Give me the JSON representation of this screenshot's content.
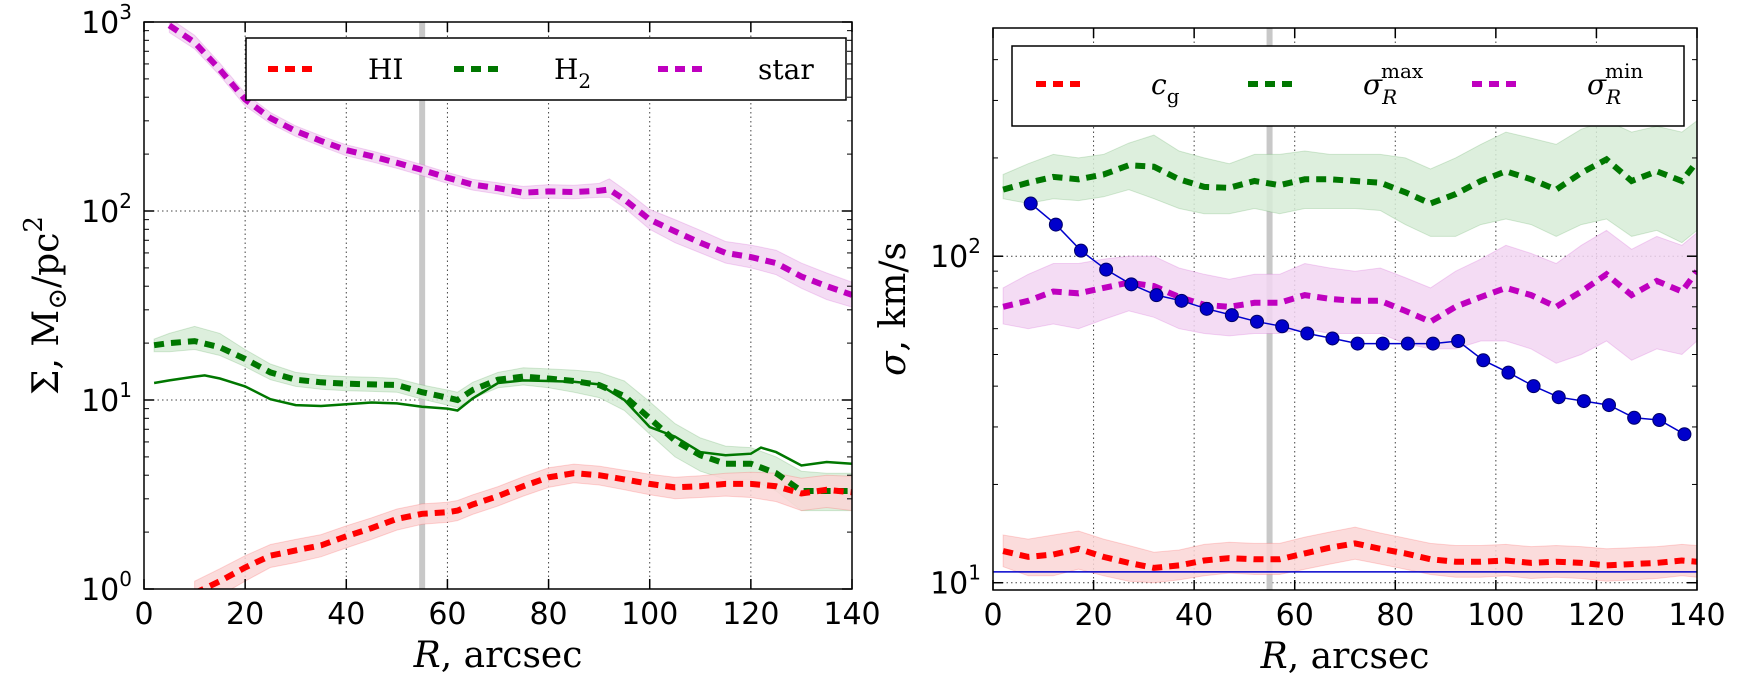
{
  "chart_data": [
    {
      "type": "line",
      "id": "left",
      "yscale": "log",
      "xlim": [
        0,
        140
      ],
      "ylim": [
        1,
        1000
      ],
      "xticks": [
        "0",
        "20",
        "40",
        "60",
        "80",
        "100",
        "120",
        "140"
      ],
      "xtick_values": [
        0,
        20,
        40,
        60,
        80,
        100,
        120,
        140
      ],
      "yticks": [
        {
          "value": 1,
          "base": "10",
          "exp": "0"
        },
        {
          "value": 10,
          "base": "10",
          "exp": "1"
        },
        {
          "value": 100,
          "base": "10",
          "exp": "2"
        },
        {
          "value": 1000,
          "base": "10",
          "exp": "3"
        }
      ],
      "xlabel": {
        "var": "R",
        "rest": ", arcsec"
      },
      "ylabel": {
        "sym": "Σ, M",
        "sub": "⊙",
        "mid": "/pc",
        "sup": "2"
      },
      "vline": 55,
      "grid": true,
      "legend": {
        "placement": "top",
        "entries": [
          {
            "label": "HI",
            "color": "#ff0000"
          },
          {
            "label": "H",
            "sub": "2",
            "color": "#007700"
          },
          {
            "label": "star",
            "color": "#bf00bf"
          }
        ]
      },
      "series": [
        {
          "name": "star",
          "color": "#bf00bf",
          "fill": "#f2d6f2",
          "style": "dashed",
          "x": [
            5,
            10,
            15,
            20,
            25,
            30,
            35,
            40,
            45,
            50,
            55,
            60,
            65,
            70,
            75,
            80,
            85,
            90,
            92,
            95,
            100,
            105,
            110,
            115,
            120,
            125,
            130,
            135,
            140
          ],
          "y": [
            960,
            780,
            560,
            390,
            310,
            265,
            235,
            210,
            195,
            180,
            165,
            150,
            138,
            132,
            125,
            127,
            126,
            128,
            130,
            115,
            90,
            78,
            68,
            60,
            57,
            53,
            45,
            40,
            36
          ],
          "lo": [
            880,
            720,
            520,
            360,
            290,
            248,
            220,
            196,
            182,
            168,
            154,
            140,
            129,
            123,
            116,
            117,
            116,
            118,
            118,
            104,
            80,
            68,
            60,
            53,
            50,
            46,
            39,
            34,
            31
          ],
          "hi": [
            1050,
            850,
            605,
            420,
            332,
            282,
            250,
            224,
            208,
            192,
            176,
            160,
            147,
            141,
            135,
            138,
            137,
            140,
            148,
            130,
            102,
            90,
            79,
            69,
            66,
            62,
            53,
            47,
            42
          ]
        },
        {
          "name": "H2",
          "color": "#007700",
          "fill": "#d7ecd7",
          "style": "dashed",
          "x": [
            2,
            5,
            10,
            15,
            20,
            25,
            30,
            35,
            40,
            45,
            50,
            55,
            60,
            62,
            65,
            70,
            75,
            80,
            85,
            90,
            95,
            100,
            105,
            110,
            115,
            120,
            125,
            130,
            135,
            140
          ],
          "y": [
            19.5,
            20,
            20.5,
            19,
            16.5,
            14,
            12.8,
            12.4,
            12.2,
            12.1,
            12,
            11,
            10.3,
            10,
            11.3,
            12.8,
            13.3,
            13,
            12.6,
            12,
            10.5,
            8,
            6.1,
            5.1,
            4.6,
            4.6,
            4.1,
            3.3,
            3.3,
            3.3
          ],
          "lo": [
            18,
            18,
            18.5,
            17.2,
            15,
            12.8,
            11.8,
            11.4,
            11.2,
            11.1,
            11,
            10.1,
            9.4,
            9.1,
            10.2,
            11.6,
            12,
            11.6,
            11,
            10.3,
            8.8,
            6.6,
            5,
            4.2,
            3.8,
            3.8,
            3.3,
            2.6,
            2.6,
            2.6
          ],
          "hi": [
            21,
            22.5,
            24.5,
            22.5,
            18.5,
            15.5,
            14,
            13.5,
            13.3,
            13.2,
            13,
            12,
            11.3,
            11,
            12.4,
            14,
            14.8,
            14.6,
            14.4,
            14,
            12.6,
            9.8,
            7.5,
            6.3,
            5.7,
            5.6,
            5,
            4.2,
            4.1,
            4.1
          ]
        },
        {
          "name": "HI",
          "color": "#ff0000",
          "fill": "#fad6d6",
          "style": "dashed",
          "x": [
            10,
            15,
            20,
            25,
            30,
            35,
            40,
            45,
            50,
            55,
            60,
            62,
            65,
            70,
            75,
            80,
            85,
            90,
            95,
            100,
            105,
            110,
            115,
            120,
            125,
            130,
            135,
            140
          ],
          "y": [
            0.95,
            1.1,
            1.3,
            1.5,
            1.6,
            1.7,
            1.9,
            2.1,
            2.35,
            2.5,
            2.55,
            2.6,
            2.8,
            3.1,
            3.5,
            3.9,
            4.1,
            4,
            3.8,
            3.6,
            3.45,
            3.5,
            3.6,
            3.6,
            3.5,
            3.2,
            3.35,
            3.25
          ],
          "lo": [
            0.8,
            0.92,
            1.1,
            1.3,
            1.38,
            1.48,
            1.65,
            1.83,
            2.05,
            2.2,
            2.25,
            2.3,
            2.48,
            2.75,
            3.1,
            3.45,
            3.65,
            3.55,
            3.35,
            3.15,
            3,
            3.05,
            3.1,
            3.05,
            2.9,
            2.6,
            2.7,
            2.6
          ],
          "hi": [
            1.1,
            1.28,
            1.5,
            1.72,
            1.83,
            1.94,
            2.16,
            2.38,
            2.65,
            2.82,
            2.88,
            2.94,
            3.15,
            3.48,
            3.93,
            4.38,
            4.58,
            4.47,
            4.25,
            4.05,
            3.9,
            3.97,
            4.1,
            4.15,
            4.1,
            3.85,
            4,
            3.95
          ]
        },
        {
          "name": "H2 (solid)",
          "color": "#007700",
          "style": "solid",
          "x": [
            2,
            5,
            10,
            12,
            15,
            20,
            25,
            30,
            35,
            40,
            45,
            50,
            55,
            60,
            62,
            65,
            70,
            75,
            80,
            85,
            90,
            95,
            100,
            105,
            110,
            115,
            120,
            122,
            125,
            130,
            135,
            140
          ],
          "y": [
            12.3,
            12.7,
            13.3,
            13.5,
            13,
            11.8,
            10.1,
            9.4,
            9.3,
            9.5,
            9.7,
            9.6,
            9.2,
            9,
            8.8,
            10.2,
            12.3,
            12.7,
            12.6,
            12.5,
            12.1,
            10,
            7.2,
            6.4,
            5.3,
            5.1,
            5.2,
            5.6,
            5.3,
            4.5,
            4.7,
            4.6
          ]
        }
      ]
    },
    {
      "type": "line",
      "id": "right",
      "yscale": "log",
      "xlim": [
        0,
        140
      ],
      "ylim": [
        9.5,
        500
      ],
      "xticks": [
        "0",
        "20",
        "40",
        "60",
        "80",
        "100",
        "120",
        "140"
      ],
      "xtick_values": [
        0,
        20,
        40,
        60,
        80,
        100,
        120,
        140
      ],
      "yticks": [
        {
          "value": 10,
          "base": "10",
          "exp": "1"
        },
        {
          "value": 100,
          "base": "10",
          "exp": "2"
        }
      ],
      "xlabel": {
        "var": "R",
        "rest": ", arcsec"
      },
      "ylabel": {
        "var": "σ",
        "rest": ", km/s"
      },
      "vline": 55,
      "grid": true,
      "legend": {
        "placement": "top",
        "entries": [
          {
            "label": "c",
            "sub": "g",
            "color": "#ff0000"
          },
          {
            "label": "σ",
            "sub": "R",
            "sup": "max",
            "color": "#007700"
          },
          {
            "label": "σ",
            "sub": "R",
            "sup": "min",
            "color": "#bf00bf"
          }
        ]
      },
      "series": [
        {
          "name": "sigma_R_max",
          "color": "#007700",
          "fill": "#d7ecd7",
          "style": "dashed",
          "x": [
            2,
            7,
            12,
            17,
            22,
            27,
            32,
            37,
            42,
            47,
            52,
            57,
            62,
            67,
            72,
            77,
            82,
            87,
            92,
            97,
            102,
            107,
            112,
            117,
            122,
            127,
            132,
            137,
            140
          ],
          "y": [
            160,
            168,
            175,
            172,
            178,
            190,
            188,
            172,
            163,
            162,
            170,
            165,
            172,
            172,
            170,
            168,
            157,
            145,
            155,
            170,
            182,
            172,
            160,
            180,
            198,
            170,
            182,
            170,
            195
          ],
          "lo": [
            150,
            145,
            150,
            148,
            152,
            160,
            150,
            140,
            135,
            135,
            140,
            135,
            140,
            140,
            140,
            138,
            125,
            115,
            115,
            125,
            130,
            125,
            115,
            125,
            130,
            115,
            120,
            110,
            120
          ],
          "hi": [
            178,
            192,
            205,
            200,
            205,
            222,
            235,
            210,
            200,
            192,
            205,
            205,
            210,
            205,
            205,
            205,
            200,
            185,
            200,
            220,
            240,
            230,
            220,
            245,
            260,
            240,
            250,
            240,
            260
          ]
        },
        {
          "name": "sigma_R_min",
          "color": "#bf00bf",
          "fill": "#f2d6f2",
          "style": "dashed",
          "x": [
            2,
            7,
            12,
            17,
            22,
            27,
            32,
            37,
            42,
            47,
            52,
            57,
            62,
            67,
            72,
            77,
            82,
            87,
            92,
            97,
            102,
            107,
            112,
            117,
            122,
            127,
            132,
            137,
            140
          ],
          "y": [
            70,
            73,
            78,
            77,
            80,
            83,
            81,
            75,
            71,
            70,
            72,
            72,
            76,
            74,
            73,
            73,
            68,
            63,
            70,
            75,
            80,
            76,
            70,
            78,
            88,
            76,
            84,
            78,
            90
          ],
          "lo": [
            62,
            60,
            62,
            60,
            64,
            68,
            65,
            60,
            58,
            57,
            58,
            58,
            60,
            58,
            58,
            58,
            54,
            52,
            52,
            55,
            55,
            52,
            47,
            50,
            55,
            48,
            52,
            50,
            55
          ],
          "hi": [
            80,
            88,
            95,
            95,
            98,
            100,
            100,
            92,
            88,
            85,
            88,
            88,
            95,
            92,
            90,
            92,
            86,
            80,
            90,
            98,
            108,
            102,
            95,
            108,
            120,
            105,
            115,
            108,
            118
          ]
        },
        {
          "name": "c_g",
          "color": "#ff0000",
          "fill": "#fad6d6",
          "style": "dashed",
          "x": [
            2,
            7,
            12,
            17,
            22,
            27,
            32,
            37,
            42,
            47,
            52,
            57,
            62,
            67,
            72,
            77,
            82,
            87,
            92,
            97,
            102,
            107,
            112,
            117,
            122,
            127,
            132,
            137,
            140
          ],
          "y": [
            12.5,
            12,
            12.2,
            12.7,
            12,
            11.5,
            11.1,
            11.3,
            11.7,
            11.9,
            11.8,
            11.8,
            12.3,
            12.8,
            13.2,
            12.7,
            12.3,
            11.8,
            11.6,
            11.6,
            11.7,
            11.5,
            11.6,
            11.5,
            11.3,
            11.4,
            11.5,
            11.7,
            11.6
          ],
          "lo": [
            11.2,
            10.5,
            10.5,
            11,
            10.5,
            10.1,
            10,
            10.2,
            10.5,
            10.7,
            10.6,
            10.6,
            11,
            11.4,
            11.8,
            11.4,
            11,
            10.6,
            10.4,
            10.4,
            10.5,
            10.3,
            10.4,
            10.3,
            10.1,
            10.2,
            10.3,
            10.5,
            10.4
          ],
          "hi": [
            14,
            13.6,
            14,
            14.4,
            13.6,
            13,
            12.4,
            12.6,
            13.1,
            13.3,
            13.2,
            13.2,
            13.8,
            14.3,
            14.8,
            14.2,
            13.7,
            13.2,
            13,
            13,
            13.1,
            12.9,
            13,
            12.9,
            12.7,
            12.8,
            12.9,
            13.1,
            13
          ]
        },
        {
          "name": "rotation_curve",
          "color": "#0000cc",
          "style": "markers-line",
          "x": [
            7.5,
            12.5,
            17.5,
            22.5,
            27.5,
            32.5,
            37.5,
            42.5,
            47.5,
            52.5,
            57.5,
            62.5,
            67.5,
            72.5,
            77.5,
            82.5,
            87.5,
            92.5,
            97.5,
            102.5,
            107.5,
            112.5,
            117.5,
            122.5,
            127.5,
            132.5,
            137.5
          ],
          "y": [
            145,
            125,
            104,
            91,
            82,
            76,
            73,
            69,
            66,
            63,
            61,
            58,
            56,
            54,
            54,
            54,
            54,
            55,
            48,
            44,
            40,
            37,
            36,
            35,
            32,
            31.5,
            28.5
          ]
        },
        {
          "name": "hline",
          "color": "#0000cc",
          "style": "hline",
          "y": [
            10.8
          ]
        }
      ]
    }
  ]
}
